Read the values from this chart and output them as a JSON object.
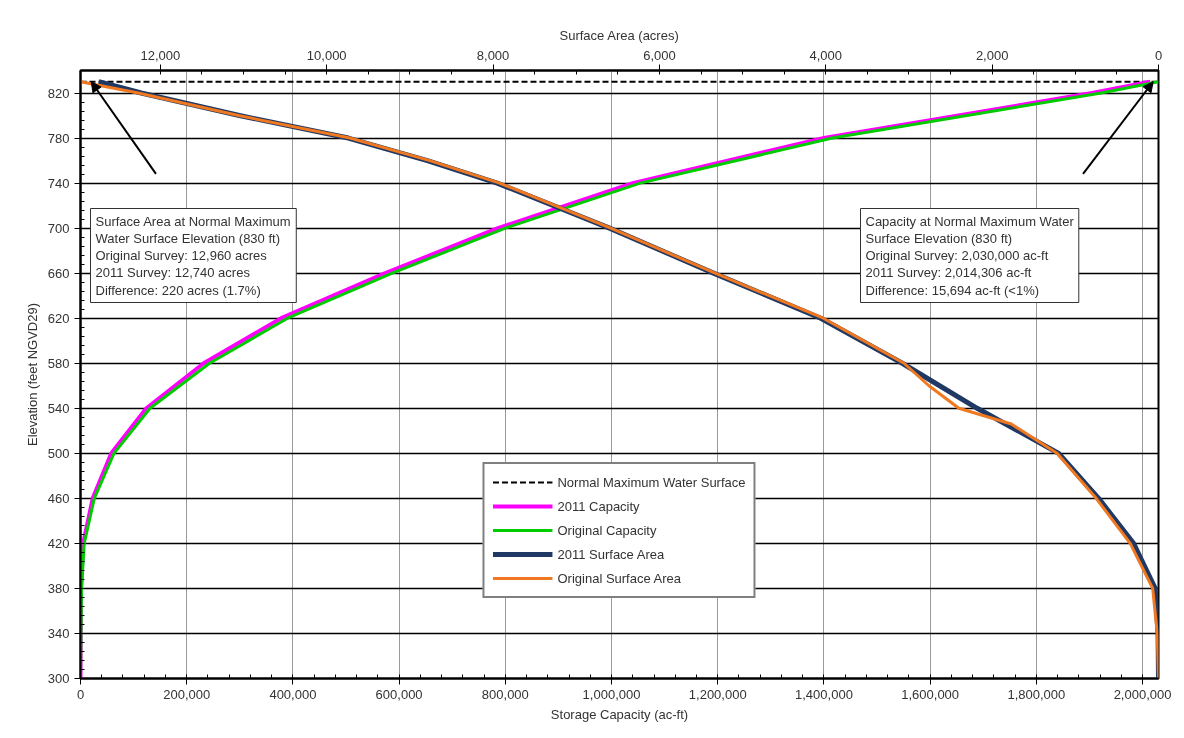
{
  "chart_data": {
    "type": "line",
    "xlabel": "Storage Capacity (ac-ft)",
    "ylabel": "Elevation (feet NGVD29)",
    "x2label": "Surface Area (acres)",
    "xlim": [
      0,
      2030000
    ],
    "xticks": [
      0,
      {
        "value": 200000,
        "label": "200,000"
      },
      {
        "value": 400000,
        "label": "400,000"
      },
      {
        "value": 600000,
        "label": "600,000"
      },
      {
        "value": 800000,
        "label": "800,000"
      },
      {
        "value": 1000000,
        "label": "1,000,000"
      },
      {
        "value": 1200000,
        "label": "1,200,000"
      },
      {
        "value": 1400000,
        "label": "1,400,000"
      },
      {
        "value": 1600000,
        "label": "1,600,000"
      },
      {
        "value": 1800000,
        "label": "1,800,000"
      },
      {
        "value": 2000000,
        "label": "2,000,000"
      }
    ],
    "x2lim": [
      12960,
      0
    ],
    "x2ticks": [
      {
        "value": 12000,
        "label": "12,000"
      },
      {
        "value": 10000,
        "label": "10,000"
      },
      {
        "value": 8000,
        "label": "8,000"
      },
      {
        "value": 6000,
        "label": "6,000"
      },
      {
        "value": 4000,
        "label": "4,000"
      },
      {
        "value": 2000,
        "label": "2,000"
      },
      0
    ],
    "ylim": [
      300,
      840
    ],
    "yticks": [
      300,
      340,
      380,
      420,
      460,
      500,
      540,
      580,
      620,
      660,
      700,
      740,
      780,
      820
    ],
    "grid": true,
    "legend": "bottom",
    "line_style": "solid",
    "marker": "none",
    "ref_lines": [
      {
        "axis": "y",
        "value": 830,
        "label": "Normal Maximum Water Surface",
        "color": "#000000",
        "line_style": "dashed"
      }
    ],
    "series": [
      {
        "name": "2011 Capacity",
        "color": "#ff00ff",
        "x": [
          0,
          1000,
          5000,
          23000,
          58000,
          124000,
          232000,
          378000,
          574000,
          786000,
          1040000,
          1400000,
          1905000,
          2014306
        ],
        "values": [
          300,
          380,
          420,
          460,
          500,
          540,
          580,
          620,
          660,
          700,
          740,
          780,
          820,
          830
        ]
      },
      {
        "name": "Original Capacity",
        "color": "#00cc00",
        "x": [
          0,
          2000,
          7000,
          26000,
          63000,
          131000,
          243000,
          390000,
          587000,
          800000,
          1054000,
          1416000,
          1922000,
          2030000
        ],
        "values": [
          300,
          380,
          420,
          460,
          500,
          540,
          580,
          620,
          660,
          700,
          740,
          780,
          820,
          830
        ]
      },
      {
        "name": "2011 Surface Area",
        "color": "#1f3864",
        "axis": "x2",
        "x": [
          0,
          5,
          40,
          300,
          720,
          1200,
          2180,
          3080,
          4060,
          5350,
          6600,
          7950,
          8790,
          9740,
          11050,
          12230,
          12740
        ],
        "values": [
          300,
          340,
          380,
          420,
          460,
          500,
          540,
          580,
          620,
          660,
          700,
          740,
          760,
          780,
          800,
          820,
          830
        ]
      },
      {
        "name": "Original Surface Area",
        "color": "#f07820",
        "axis": "x2",
        "x": [
          0,
          15,
          70,
          340,
          750,
          1220,
          1770,
          2400,
          2760,
          3060,
          4030,
          5330,
          6585,
          7920,
          8760,
          9720,
          11060,
          12265,
          12960
        ],
        "values": [
          300,
          340,
          380,
          420,
          460,
          500,
          526,
          540,
          560,
          580,
          620,
          660,
          700,
          740,
          760,
          780,
          800,
          820,
          830
        ]
      }
    ],
    "annotations": [
      "Surface Area at Normal Maximum\nWater Surface Elevation (830 ft)\nOriginal Survey: 12,960 acres\n2011 Survey: 12,740 acres\nDifference: 220 acres (1.7%)",
      "Capacity at Normal Maximum Water\nSurface Elevation (830 ft)\nOriginal Survey: 2,030,000 ac-ft\n2011 Survey: 2,014,306 ac-ft\nDifference: 15,694 ac-ft (<1%)"
    ]
  }
}
